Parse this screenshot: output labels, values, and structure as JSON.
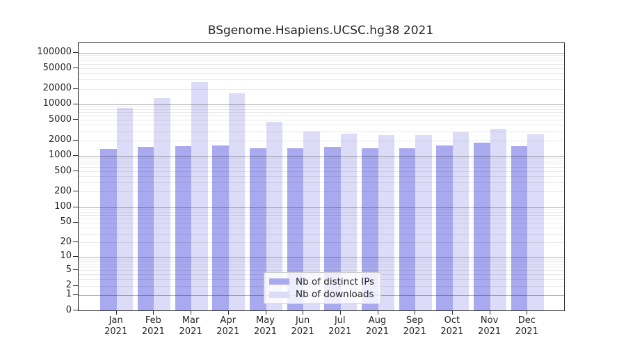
{
  "chart_data": {
    "type": "bar",
    "title": "BSgenome.Hsapiens.UCSC.hg38 2021",
    "categories": [
      "Jan",
      "Feb",
      "Mar",
      "Apr",
      "May",
      "Jun",
      "Jul",
      "Aug",
      "Sep",
      "Oct",
      "Nov",
      "Dec"
    ],
    "year_label": "2021",
    "series": [
      {
        "name": "Nb of distinct IPs",
        "color": "#a9a9f0",
        "values": [
          1370,
          1470,
          1550,
          1610,
          1420,
          1420,
          1470,
          1420,
          1380,
          1600,
          1790,
          1550
        ]
      },
      {
        "name": "Nb of downloads",
        "color": "#dcdcf8",
        "values": [
          8400,
          13200,
          27300,
          16600,
          4600,
          2950,
          2730,
          2540,
          2550,
          2900,
          3300,
          2570
        ]
      }
    ],
    "xlabel": "",
    "ylabel": "",
    "y_scale": "log10(value+1)",
    "y_ticks": [
      0,
      1,
      2,
      5,
      10,
      20,
      50,
      100,
      200,
      500,
      1000,
      2000,
      5000,
      10000,
      20000,
      50000,
      100000
    ],
    "ylim": [
      0,
      157000
    ],
    "grid": true,
    "grid_over_bars": true,
    "legend_position": "inside-bottom-center",
    "axis_color": "#262626",
    "background_color": "#ffffff"
  }
}
